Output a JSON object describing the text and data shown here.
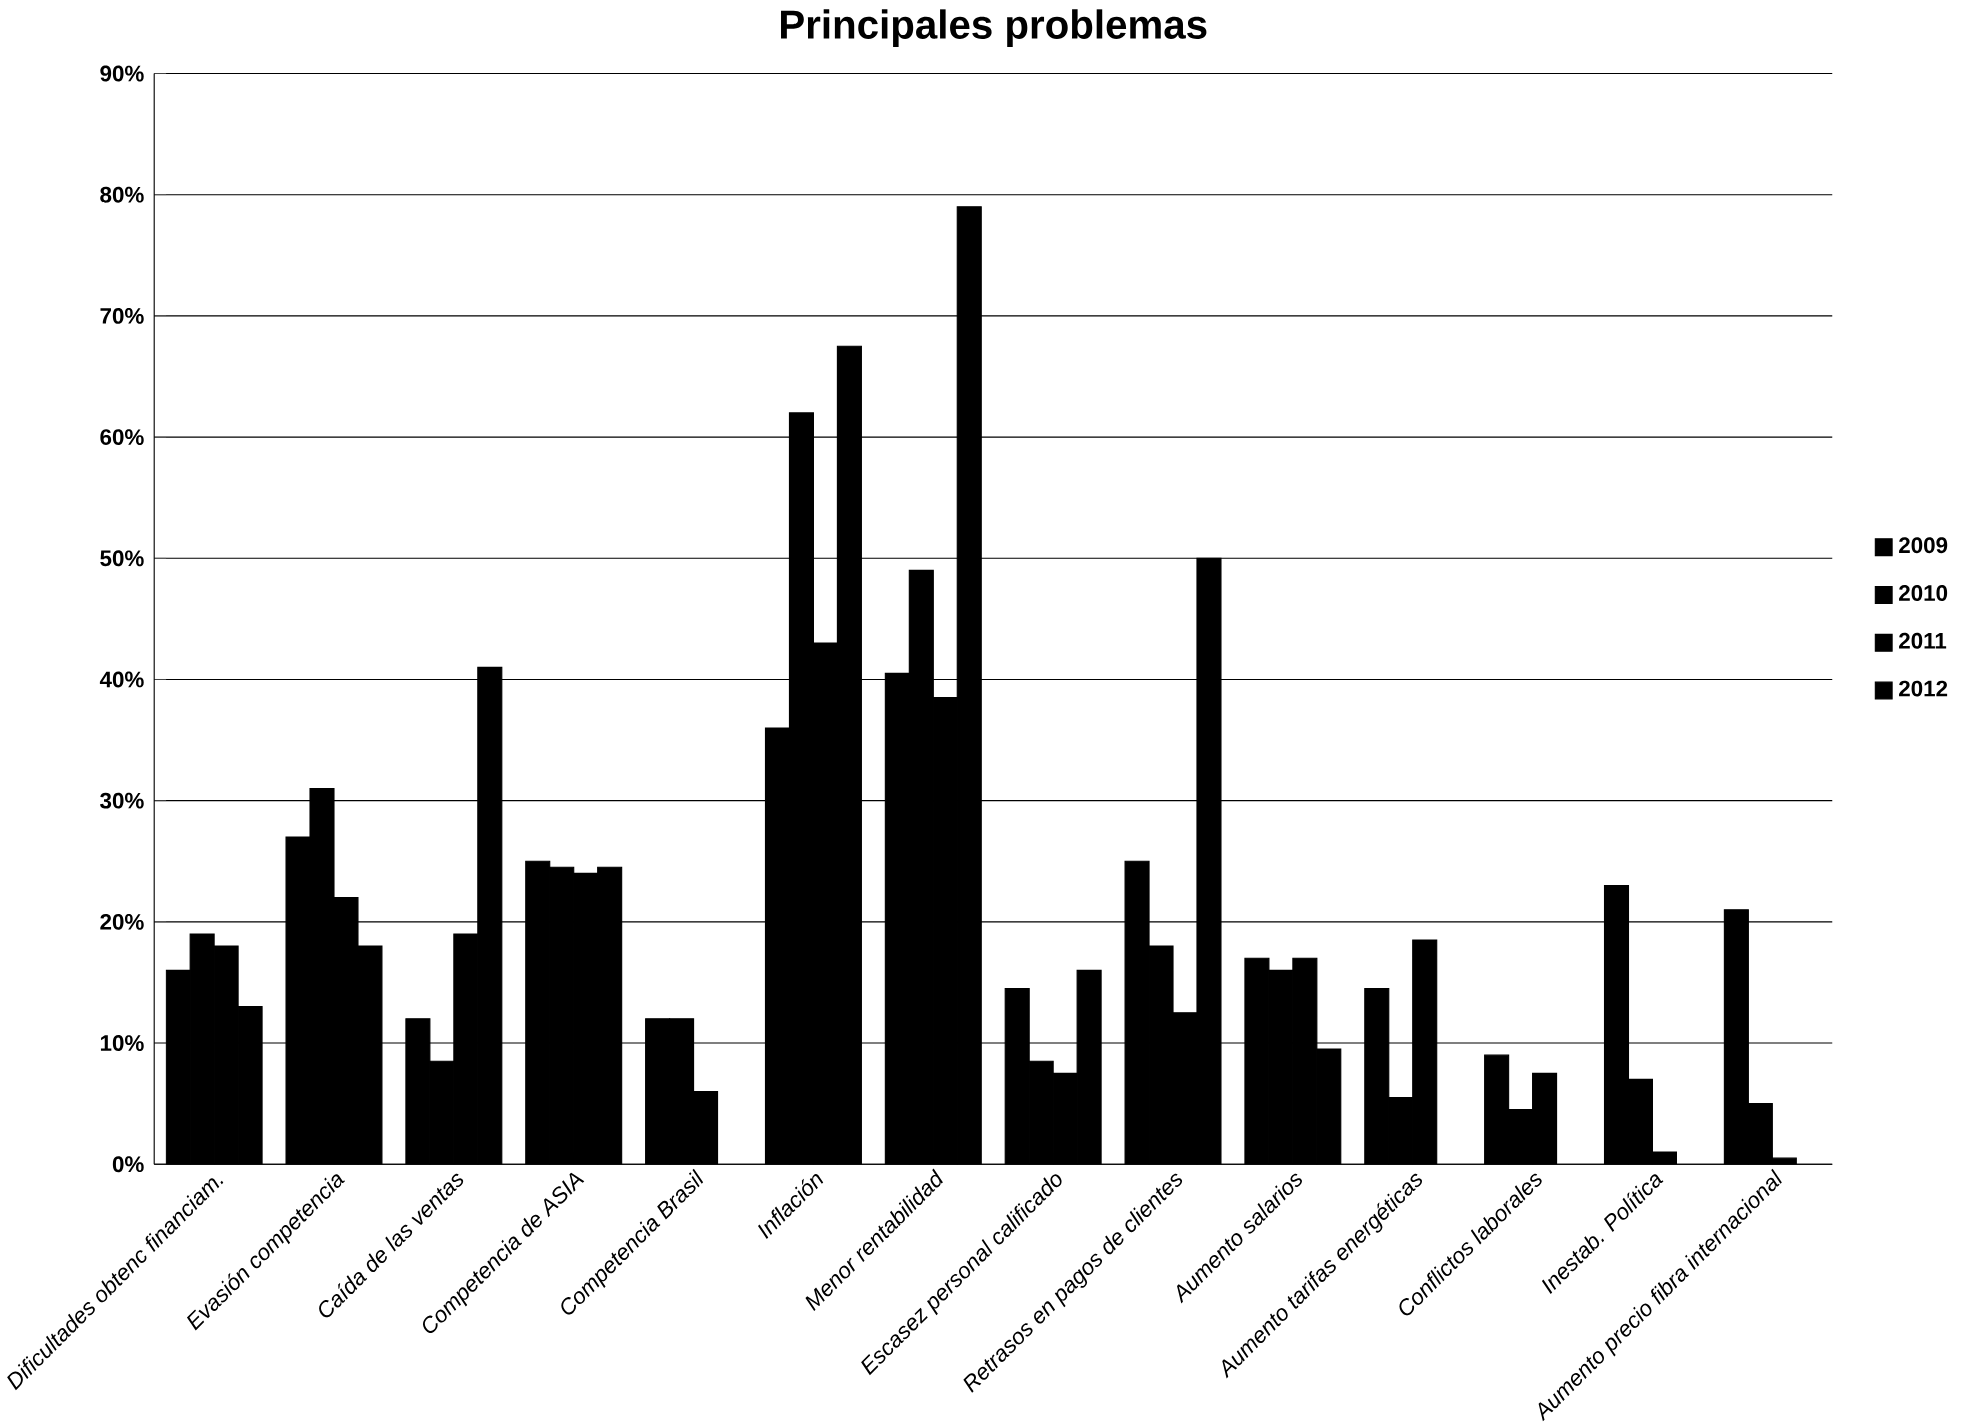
{
  "chart_data": {
    "type": "bar",
    "title": "Principales problemas",
    "categories": [
      "Dificultades obtenc financiam.",
      "Evasión competencia",
      "Caída de las ventas",
      "Competencia de ASIA",
      "Competencia Brasil",
      "Inflación",
      "Menor rentabilidad",
      "Escasez personal calificado",
      "Retrasos en pagos de clientes",
      "Aumento salarios",
      "Aumento tarifas energéticas",
      "Conflictos laborales",
      "Inestab. Política",
      "Aumento precio fibra internacional"
    ],
    "series": [
      {
        "name": "2009",
        "color": "#000000",
        "values": [
          16,
          27,
          12,
          25,
          12,
          36,
          40.5,
          14.5,
          25,
          17,
          14.5,
          9,
          23,
          21
        ]
      },
      {
        "name": "2010",
        "color": "#000000",
        "values": [
          19,
          31,
          8.5,
          24.5,
          12,
          62,
          49,
          8.5,
          18,
          16,
          5.5,
          4.5,
          7,
          5
        ]
      },
      {
        "name": "2011",
        "color": "#000000",
        "values": [
          18,
          22,
          19,
          24,
          6,
          43,
          38.5,
          7.5,
          12.5,
          17,
          18.5,
          7.5,
          1,
          0.5
        ]
      },
      {
        "name": "2012",
        "color": "#000000",
        "values": [
          13,
          18,
          41,
          24.5,
          null,
          67.5,
          79,
          16,
          50,
          9.5,
          null,
          null,
          null,
          null
        ]
      }
    ],
    "ylim": [
      0,
      90
    ],
    "yticks": [
      {
        "value": 0,
        "label": "0%"
      },
      {
        "value": 10,
        "label": "10%"
      },
      {
        "value": 20,
        "label": "20%"
      },
      {
        "value": 30,
        "label": "30%"
      },
      {
        "value": 40,
        "label": "40%"
      },
      {
        "value": 50,
        "label": "50%"
      },
      {
        "value": 60,
        "label": "60%"
      },
      {
        "value": 70,
        "label": "70%"
      },
      {
        "value": 80,
        "label": "80%"
      },
      {
        "value": 90,
        "label": "90%"
      }
    ],
    "grid": "y",
    "legend": "right"
  }
}
